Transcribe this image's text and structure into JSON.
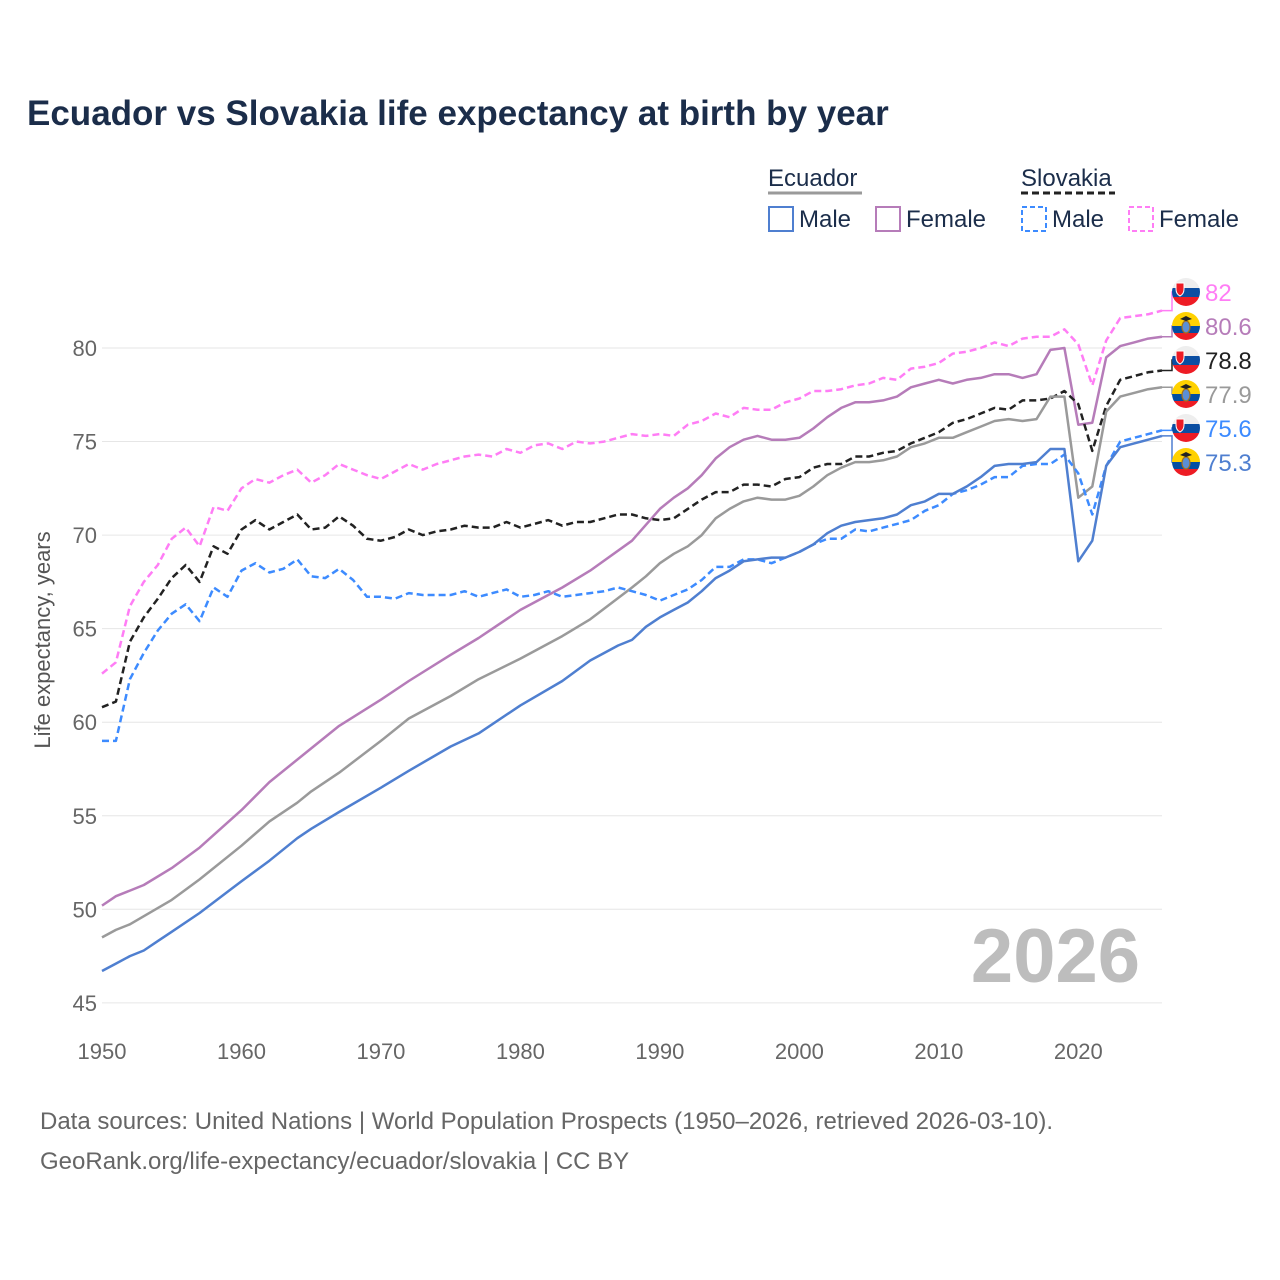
{
  "title": "Ecuador vs Slovakia life expectancy at birth by year",
  "footer": {
    "line1": "Data sources: United Nations | World Population Prospects (1950–2026, retrieved 2026-03-10).",
    "line2": "GeoRank.org/life-expectancy/ecuador/slovakia | CC BY"
  },
  "chart_data": {
    "type": "line",
    "title": "Ecuador vs Slovakia life expectancy at birth by year",
    "xlabel": "",
    "ylabel": "Life expectancy, years",
    "xlim": [
      1950,
      2026
    ],
    "ylim": [
      45,
      83
    ],
    "xticks": [
      "1950",
      "1960",
      "1970",
      "1980",
      "1990",
      "2000",
      "2010",
      "2020"
    ],
    "yticks": [
      "45",
      "50",
      "55",
      "60",
      "65",
      "70",
      "75",
      "80"
    ],
    "grid": true,
    "year_watermark": "2026",
    "legend": {
      "placement": "top-right",
      "groups": [
        {
          "name": "Ecuador",
          "items": [
            "Male",
            "Female"
          ]
        },
        {
          "name": "Slovakia",
          "items": [
            "Male",
            "Female"
          ]
        }
      ]
    },
    "series": [
      {
        "name": "Slovakia Female",
        "country": "slovakia",
        "color": "#ff7df5",
        "dash": true,
        "end_label": "82",
        "x": [
          1950,
          1951,
          1952,
          1953,
          1954,
          1955,
          1956,
          1957,
          1958,
          1959,
          1960,
          1961,
          1962,
          1963,
          1964,
          1965,
          1966,
          1967,
          1968,
          1969,
          1970,
          1971,
          1972,
          1973,
          1974,
          1975,
          1976,
          1977,
          1978,
          1979,
          1980,
          1981,
          1982,
          1983,
          1984,
          1985,
          1986,
          1987,
          1988,
          1989,
          1990,
          1991,
          1992,
          1993,
          1994,
          1995,
          1996,
          1997,
          1998,
          1999,
          2000,
          2001,
          2002,
          2003,
          2004,
          2005,
          2006,
          2007,
          2008,
          2009,
          2010,
          2011,
          2012,
          2013,
          2014,
          2015,
          2016,
          2017,
          2018,
          2019,
          2020,
          2021,
          2022,
          2023,
          2024,
          2025,
          2026
        ],
        "y": [
          62.6,
          63.2,
          66.2,
          67.5,
          68.4,
          69.8,
          70.4,
          69.4,
          71.5,
          71.3,
          72.5,
          73.0,
          72.8,
          73.2,
          73.5,
          72.8,
          73.2,
          73.8,
          73.5,
          73.2,
          73.0,
          73.4,
          73.8,
          73.5,
          73.8,
          74.0,
          74.2,
          74.3,
          74.2,
          74.6,
          74.4,
          74.8,
          74.9,
          74.6,
          75.0,
          74.9,
          75.0,
          75.2,
          75.4,
          75.3,
          75.4,
          75.3,
          75.9,
          76.1,
          76.5,
          76.3,
          76.8,
          76.7,
          76.7,
          77.1,
          77.3,
          77.7,
          77.7,
          77.8,
          78.0,
          78.1,
          78.4,
          78.3,
          78.9,
          79.0,
          79.2,
          79.7,
          79.8,
          80.0,
          80.3,
          80.1,
          80.5,
          80.6,
          80.6,
          81.0,
          80.2,
          78.0,
          80.4,
          81.6,
          81.7,
          81.8,
          82.0
        ]
      },
      {
        "name": "Ecuador Female",
        "country": "ecuador",
        "color": "#b67cb9",
        "dash": false,
        "end_label": "80.6",
        "x": [
          1950,
          1951,
          1952,
          1953,
          1955,
          1957,
          1960,
          1962,
          1965,
          1967,
          1970,
          1972,
          1975,
          1977,
          1980,
          1983,
          1985,
          1988,
          1990,
          1991,
          1992,
          1993,
          1994,
          1995,
          1996,
          1997,
          1998,
          1999,
          2000,
          2001,
          2002,
          2003,
          2004,
          2005,
          2006,
          2007,
          2008,
          2009,
          2010,
          2011,
          2012,
          2013,
          2014,
          2015,
          2016,
          2017,
          2018,
          2019,
          2020,
          2021,
          2022,
          2023,
          2024,
          2025,
          2026
        ],
        "y": [
          50.2,
          50.7,
          51.0,
          51.3,
          52.2,
          53.3,
          55.3,
          56.8,
          58.6,
          59.8,
          61.2,
          62.2,
          63.6,
          64.5,
          66.0,
          67.2,
          68.1,
          69.7,
          71.4,
          72.0,
          72.5,
          73.2,
          74.1,
          74.7,
          75.1,
          75.3,
          75.1,
          75.1,
          75.2,
          75.7,
          76.3,
          76.8,
          77.1,
          77.1,
          77.2,
          77.4,
          77.9,
          78.1,
          78.3,
          78.1,
          78.3,
          78.4,
          78.6,
          78.6,
          78.4,
          78.6,
          79.9,
          80.0,
          75.9,
          76.0,
          79.5,
          80.1,
          80.3,
          80.5,
          80.6
        ]
      },
      {
        "name": "Slovakia",
        "country": "slovakia",
        "color": "#222222",
        "dash": true,
        "end_label": "78.8",
        "x": [
          1950,
          1951,
          1952,
          1953,
          1954,
          1955,
          1956,
          1957,
          1958,
          1959,
          1960,
          1961,
          1962,
          1963,
          1964,
          1965,
          1966,
          1967,
          1968,
          1969,
          1970,
          1971,
          1972,
          1973,
          1974,
          1975,
          1976,
          1977,
          1978,
          1979,
          1980,
          1981,
          1982,
          1983,
          1984,
          1985,
          1986,
          1987,
          1988,
          1989,
          1990,
          1991,
          1992,
          1993,
          1994,
          1995,
          1996,
          1997,
          1998,
          1999,
          2000,
          2001,
          2002,
          2003,
          2004,
          2005,
          2006,
          2007,
          2008,
          2009,
          2010,
          2011,
          2012,
          2013,
          2014,
          2015,
          2016,
          2017,
          2018,
          2019,
          2020,
          2021,
          2022,
          2023,
          2024,
          2025,
          2026
        ],
        "y": [
          60.8,
          61.1,
          64.3,
          65.6,
          66.6,
          67.7,
          68.4,
          67.5,
          69.4,
          69.0,
          70.3,
          70.8,
          70.3,
          70.7,
          71.1,
          70.3,
          70.4,
          71.0,
          70.5,
          69.8,
          69.7,
          69.9,
          70.3,
          70.0,
          70.2,
          70.3,
          70.5,
          70.4,
          70.4,
          70.7,
          70.4,
          70.6,
          70.8,
          70.5,
          70.7,
          70.7,
          70.9,
          71.1,
          71.1,
          70.9,
          70.8,
          70.9,
          71.4,
          71.9,
          72.3,
          72.3,
          72.7,
          72.7,
          72.6,
          73.0,
          73.1,
          73.6,
          73.8,
          73.8,
          74.2,
          74.2,
          74.4,
          74.5,
          74.9,
          75.2,
          75.5,
          76.0,
          76.2,
          76.5,
          76.8,
          76.7,
          77.2,
          77.2,
          77.3,
          77.7,
          77.0,
          74.5,
          76.9,
          78.3,
          78.5,
          78.7,
          78.8
        ]
      },
      {
        "name": "Ecuador",
        "country": "ecuador",
        "color": "#9a9a9a",
        "dash": false,
        "end_label": "77.9",
        "x": [
          1950,
          1951,
          1952,
          1955,
          1957,
          1960,
          1962,
          1964,
          1965,
          1967,
          1970,
          1972,
          1975,
          1977,
          1980,
          1983,
          1985,
          1988,
          1989,
          1990,
          1991,
          1992,
          1993,
          1994,
          1995,
          1996,
          1997,
          1998,
          1999,
          2000,
          2001,
          2002,
          2003,
          2004,
          2005,
          2006,
          2007,
          2008,
          2009,
          2010,
          2011,
          2012,
          2013,
          2014,
          2015,
          2016,
          2017,
          2018,
          2019,
          2020,
          2021,
          2022,
          2023,
          2024,
          2025,
          2026
        ],
        "y": [
          48.5,
          48.9,
          49.2,
          50.5,
          51.6,
          53.4,
          54.7,
          55.7,
          56.3,
          57.3,
          59.0,
          60.2,
          61.4,
          62.3,
          63.4,
          64.6,
          65.5,
          67.2,
          67.8,
          68.5,
          69.0,
          69.4,
          70.0,
          70.9,
          71.4,
          71.8,
          72.0,
          71.9,
          71.9,
          72.1,
          72.6,
          73.2,
          73.6,
          73.9,
          73.9,
          74.0,
          74.2,
          74.7,
          74.9,
          75.2,
          75.2,
          75.5,
          75.8,
          76.1,
          76.2,
          76.1,
          76.2,
          77.4,
          77.4,
          72.0,
          72.6,
          76.6,
          77.4,
          77.6,
          77.8,
          77.9
        ]
      },
      {
        "name": "Slovakia Male",
        "country": "slovakia",
        "color": "#3d8bff",
        "dash": true,
        "end_label": "75.6",
        "x": [
          1950,
          1951,
          1952,
          1953,
          1954,
          1955,
          1956,
          1957,
          1958,
          1959,
          1960,
          1961,
          1962,
          1963,
          1964,
          1965,
          1966,
          1967,
          1968,
          1969,
          1970,
          1971,
          1972,
          1973,
          1974,
          1975,
          1976,
          1977,
          1978,
          1979,
          1980,
          1981,
          1982,
          1983,
          1984,
          1985,
          1986,
          1987,
          1988,
          1989,
          1990,
          1991,
          1992,
          1993,
          1994,
          1995,
          1996,
          1997,
          1998,
          1999,
          2000,
          2001,
          2002,
          2003,
          2004,
          2005,
          2006,
          2007,
          2008,
          2009,
          2010,
          2011,
          2012,
          2013,
          2014,
          2015,
          2016,
          2017,
          2018,
          2019,
          2020,
          2021,
          2022,
          2023,
          2024,
          2025,
          2026
        ],
        "y": [
          59.0,
          59.0,
          62.3,
          63.7,
          64.9,
          65.8,
          66.3,
          65.4,
          67.2,
          66.7,
          68.1,
          68.5,
          68.0,
          68.2,
          68.7,
          67.8,
          67.7,
          68.2,
          67.6,
          66.7,
          66.7,
          66.6,
          66.9,
          66.8,
          66.8,
          66.8,
          67.0,
          66.7,
          66.9,
          67.1,
          66.7,
          66.8,
          67.0,
          66.7,
          66.8,
          66.9,
          67.0,
          67.2,
          67.0,
          66.8,
          66.5,
          66.8,
          67.1,
          67.6,
          68.3,
          68.3,
          68.7,
          68.7,
          68.5,
          68.8,
          69.1,
          69.5,
          69.8,
          69.8,
          70.3,
          70.2,
          70.4,
          70.6,
          70.8,
          71.3,
          71.6,
          72.2,
          72.4,
          72.7,
          73.1,
          73.1,
          73.7,
          73.8,
          73.8,
          74.3,
          73.3,
          71.1,
          73.7,
          75.0,
          75.2,
          75.4,
          75.6
        ]
      },
      {
        "name": "Ecuador Male",
        "country": "ecuador",
        "color": "#4f7fd0",
        "dash": false,
        "end_label": "75.3",
        "x": [
          1950,
          1951,
          1952,
          1953,
          1954,
          1955,
          1957,
          1960,
          1962,
          1964,
          1965,
          1967,
          1970,
          1972,
          1975,
          1977,
          1980,
          1983,
          1985,
          1987,
          1988,
          1989,
          1990,
          1991,
          1992,
          1993,
          1994,
          1995,
          1996,
          1997,
          1998,
          1999,
          2000,
          2001,
          2002,
          2003,
          2004,
          2005,
          2006,
          2007,
          2008,
          2009,
          2010,
          2011,
          2012,
          2013,
          2014,
          2015,
          2016,
          2017,
          2018,
          2019,
          2020,
          2021,
          2022,
          2023,
          2024,
          2025,
          2026
        ],
        "y": [
          46.7,
          47.1,
          47.5,
          47.8,
          48.3,
          48.8,
          49.8,
          51.5,
          52.6,
          53.8,
          54.3,
          55.2,
          56.5,
          57.4,
          58.7,
          59.4,
          60.9,
          62.2,
          63.3,
          64.1,
          64.4,
          65.1,
          65.6,
          66.0,
          66.4,
          67.0,
          67.7,
          68.1,
          68.6,
          68.7,
          68.8,
          68.8,
          69.1,
          69.5,
          70.1,
          70.5,
          70.7,
          70.8,
          70.9,
          71.1,
          71.6,
          71.8,
          72.2,
          72.2,
          72.6,
          73.1,
          73.7,
          73.8,
          73.8,
          73.9,
          74.6,
          74.6,
          68.6,
          69.7,
          73.7,
          74.7,
          74.9,
          75.1,
          75.3
        ]
      }
    ]
  }
}
